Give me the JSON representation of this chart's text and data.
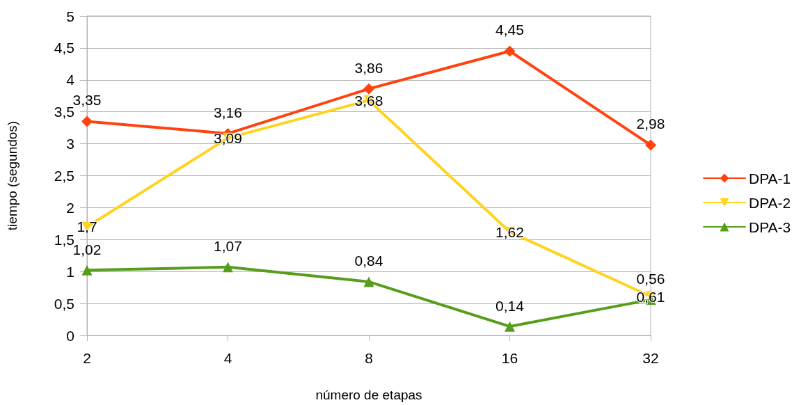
{
  "chart_data": {
    "type": "line",
    "xlabel": "número de etapas",
    "ylabel": "tiempo (segundos)",
    "categories": [
      "2",
      "4",
      "8",
      "16",
      "32"
    ],
    "series": [
      {
        "name": "DPA-1",
        "color": "#ff420e",
        "marker": "diamond",
        "values": [
          3.35,
          3.16,
          3.86,
          4.45,
          2.98
        ],
        "value_labels": [
          "3,35",
          "3,16",
          "3,86",
          "4,45",
          "2,98"
        ]
      },
      {
        "name": "DPA-2",
        "color": "#ffd320",
        "marker": "triangle-down",
        "values": [
          1.7,
          3.09,
          3.68,
          1.62,
          0.61
        ],
        "value_labels": [
          "1,7",
          "3,09",
          "3,68",
          "1,62",
          "0,61"
        ]
      },
      {
        "name": "DPA-3",
        "color": "#579d1c",
        "marker": "triangle",
        "values": [
          1.02,
          1.07,
          0.84,
          0.14,
          0.56
        ],
        "value_labels": [
          "1,02",
          "1,07",
          "0,84",
          "0,14",
          "0,56"
        ]
      }
    ],
    "ylim": [
      0,
      5
    ],
    "yticks": [
      0,
      {
        "value": 0.5,
        "label": "0,5"
      },
      1,
      {
        "value": 1.5,
        "label": "1,5"
      },
      2,
      {
        "value": 2.5,
        "label": "2,5"
      },
      3,
      {
        "value": 3.5,
        "label": "3,5"
      },
      4,
      {
        "value": 4.5,
        "label": "4,5"
      },
      5
    ],
    "grid": "y",
    "legend": "right",
    "line_style": "solid"
  }
}
